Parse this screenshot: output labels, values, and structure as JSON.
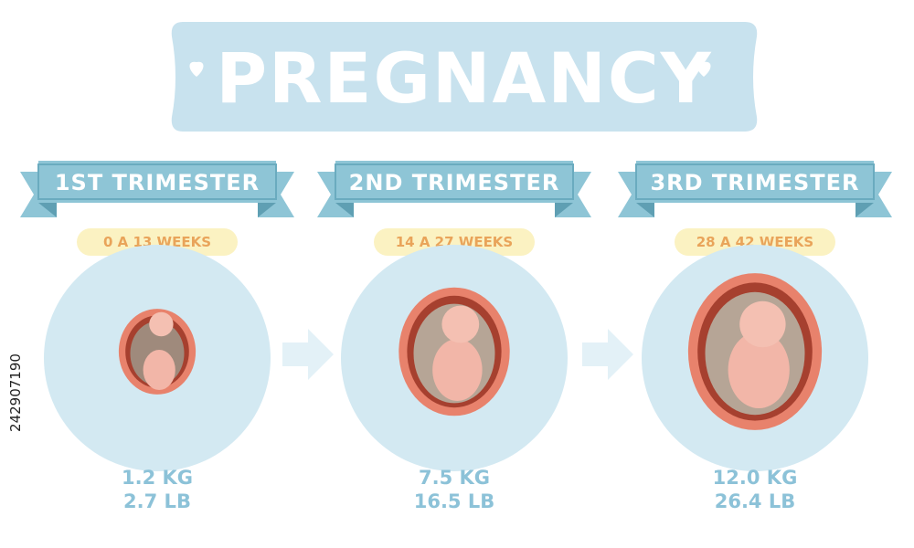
{
  "title": "PREGNANCY",
  "trimesters": [
    {
      "label": "1ST TRIMESTER",
      "weeks": "0 A 13 WEEKS",
      "weight_kg": "1.2 KG",
      "weight_lb": "2.7 LB"
    },
    {
      "label": "2ND TRIMESTER",
      "weeks": "14 A 27 WEEKS",
      "weight_kg": "7.5 KG",
      "weight_lb": "16.5 LB"
    },
    {
      "label": "3RD TRIMESTER",
      "weeks": "28 A 42 WEEKS",
      "weight_kg": "12.0 KG",
      "weight_lb": "26.4 LB"
    }
  ],
  "stock_id": "242907190"
}
